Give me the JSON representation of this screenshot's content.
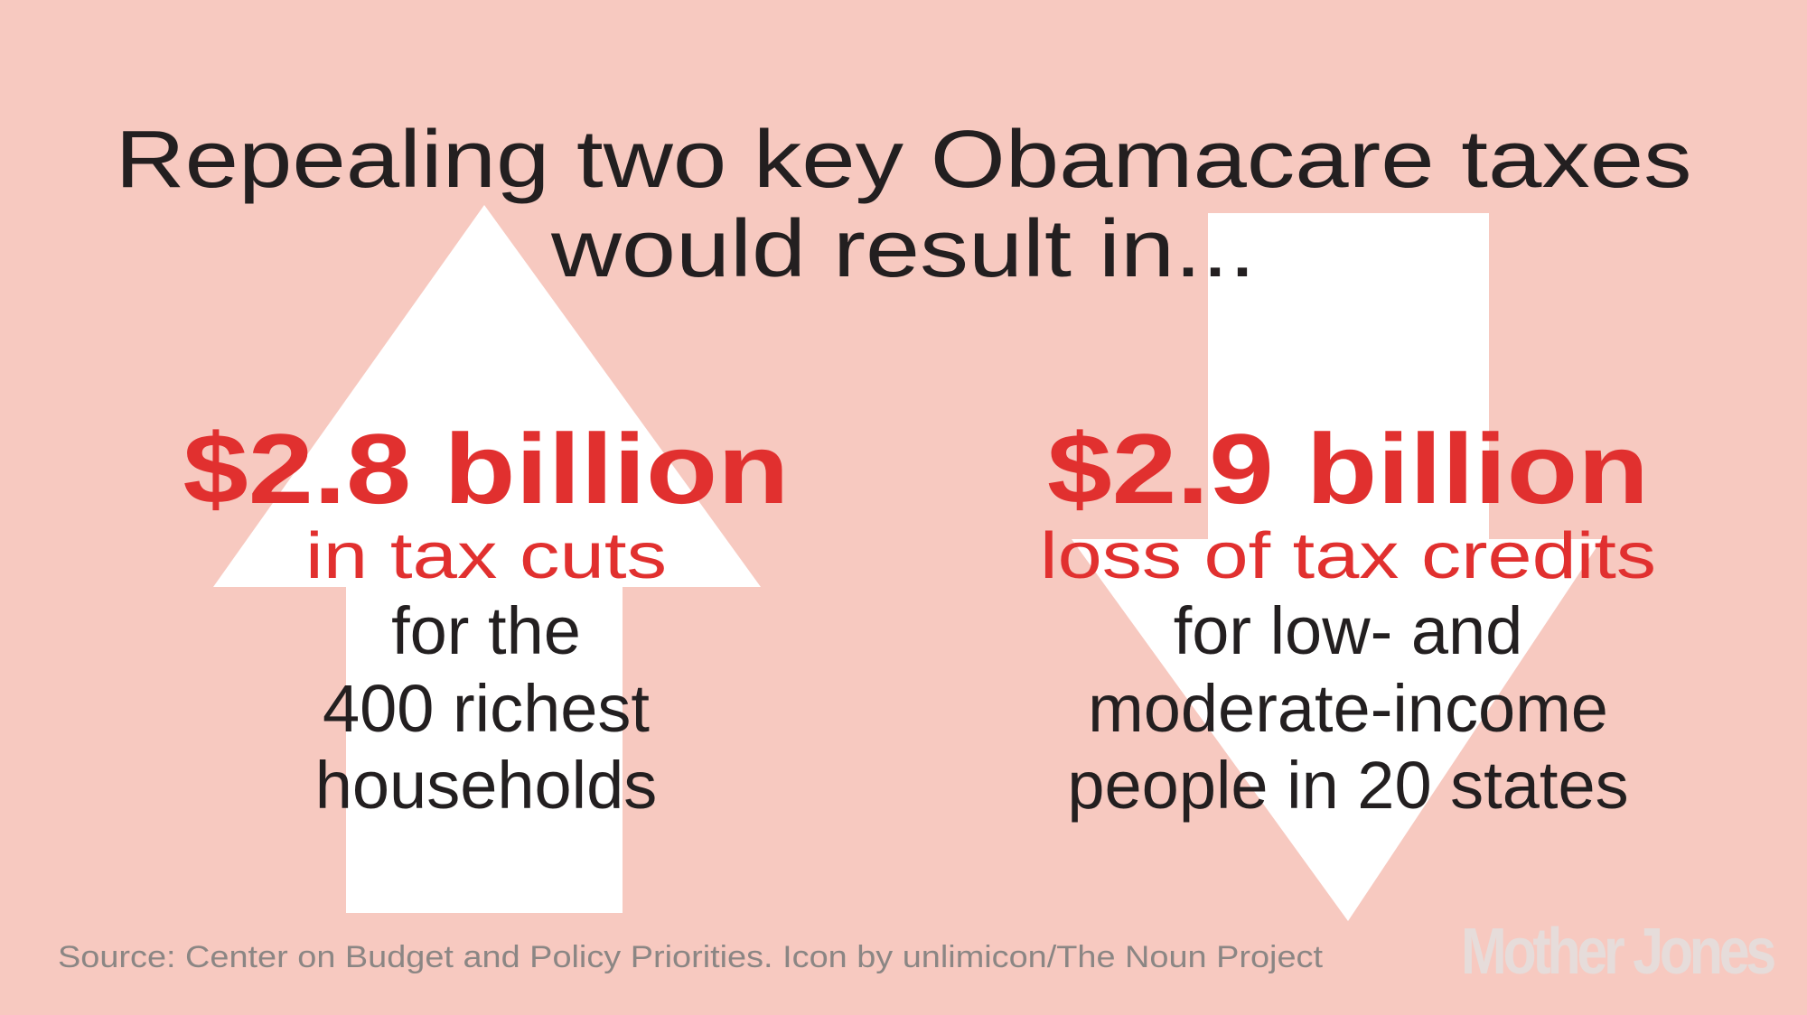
{
  "header": {
    "title_lines": [
      "Repealing two key Obamacare taxes",
      "would result in..."
    ]
  },
  "panels": [
    {
      "amount": "$2.8 billion",
      "subtitle": "in tax cuts",
      "description_lines": [
        "for the",
        "400 richest",
        "households"
      ]
    },
    {
      "amount": "$2.9 billion",
      "subtitle": "loss of tax credits",
      "description_lines": [
        "for low- and",
        "moderate-income",
        "people in 20 states"
      ]
    }
  ],
  "footer": {
    "source": "Source: Center on Budget and Policy Priorities. Icon by unlimicon/The Noun Project",
    "logo": "Mother Jones"
  }
}
